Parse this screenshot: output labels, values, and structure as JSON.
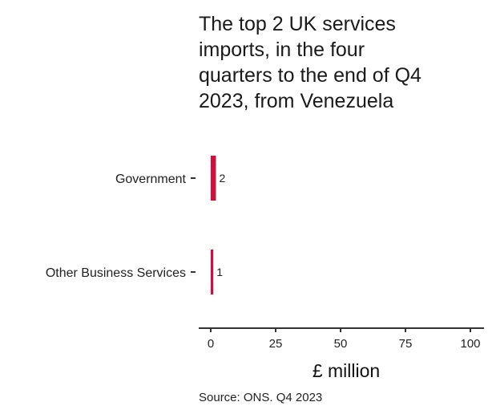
{
  "chart_data": {
    "type": "bar",
    "orientation": "horizontal",
    "title_lines": [
      "The top 2 UK services",
      "imports, in the four",
      "quarters to the end of Q4",
      "2023, from Venezuela"
    ],
    "categories": [
      "Government",
      "Other Business Services"
    ],
    "values": [
      2,
      1
    ],
    "data_labels": [
      "2",
      "1"
    ],
    "xlabel": "£ million",
    "xlim": [
      0,
      100
    ],
    "xticks": [
      0,
      25,
      50,
      75,
      100
    ],
    "source": "Source: ONS. Q4 2023",
    "bar_color": "#d0103a",
    "axis_color": "#333333",
    "grid": false
  }
}
